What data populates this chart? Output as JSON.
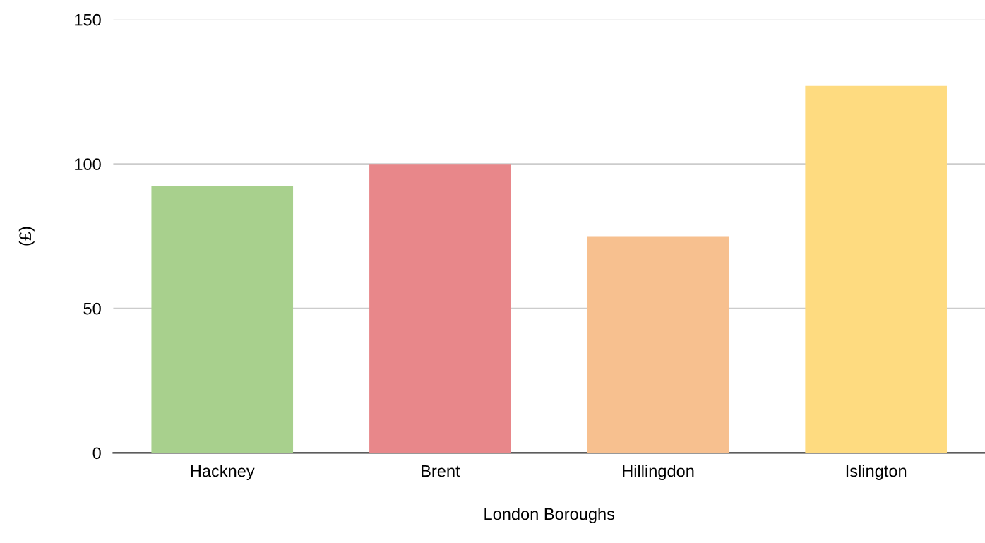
{
  "chart_data": {
    "type": "bar",
    "xlabel": "London Boroughs",
    "ylabel": "(£)",
    "categories": [
      "Hackney",
      "Brent",
      "Hillingdon",
      "Islington"
    ],
    "values": [
      92.5,
      100,
      75,
      127
    ],
    "colors": [
      "#a8d08d",
      "#e8878a",
      "#f7c08f",
      "#fedb80"
    ],
    "ylim": [
      0,
      150
    ],
    "yticks": [
      0,
      50,
      100,
      150
    ],
    "grid": "y",
    "legend": false
  }
}
